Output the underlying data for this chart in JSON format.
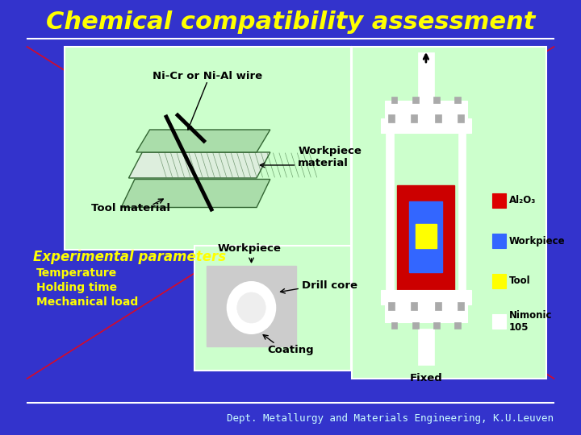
{
  "title": "Chemical compatibility assessment",
  "title_color": "#FFFF00",
  "title_fontsize": 22,
  "bg_color": "#3333CC",
  "panel_bg": "#CCFFCC",
  "footer_text": "Dept. Metallurgy and Materials Engineering, K.U.Leuven",
  "footer_color": "#CCFFFF",
  "exp_params_label": "Experimental parameters",
  "exp_params_color": "#FFFF00",
  "exp_params_items": [
    "Temperature",
    "Holding time",
    "Mechanical load"
  ],
  "exp_items_color": "#FFFF00",
  "top_left_labels": {
    "wire": "Ni-Cr or Ni-Al wire",
    "workpiece": "Workpiece\nmaterial",
    "tool": "Tool material"
  },
  "bottom_left_labels": {
    "workpiece": "Workpiece",
    "drill": "Drill core",
    "coating": "Coating"
  },
  "right_legend": {
    "Al2O3": "#DD0000",
    "Workpiece": "#3366FF",
    "Tool": "#FFFF00",
    "Nimonic\n105": "#FFFFFF"
  },
  "right_bottom_label": "Fixed",
  "separator_color": "#FFFFFF",
  "red_lines_color": "#FF0000"
}
